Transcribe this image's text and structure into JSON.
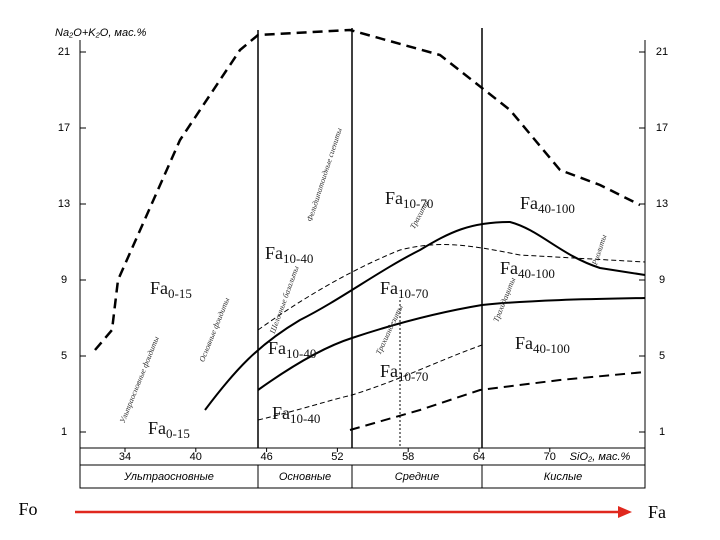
{
  "y_axis_label": "Na₂O+K₂O, мас.%",
  "x_axis_label": "SiO₂, мас.%",
  "yticks": [
    21,
    17,
    13,
    9,
    5,
    1
  ],
  "xticks": [
    34,
    40,
    46,
    52,
    58,
    64,
    70
  ],
  "rock_groups": [
    "Ультраосновные",
    "Основные",
    "Средние",
    "Кислые"
  ],
  "field_labels": [
    "Ультраосновные фоидиты",
    "Основные фоидиты",
    "Шелочные базальты",
    "Фельдшпатоидные сиениты",
    "Трахиандезиты",
    "Трахиты",
    "Трахидациты",
    "Риолиты"
  ],
  "fa_labels": [
    {
      "base": "Fa",
      "sub": "10-70"
    },
    {
      "base": "Fa",
      "sub": "40-100"
    },
    {
      "base": "Fa",
      "sub": "10-40"
    },
    {
      "base": "Fa",
      "sub": "0-15"
    },
    {
      "base": "Fa",
      "sub": "10-70"
    },
    {
      "base": "Fa",
      "sub": "40-100"
    },
    {
      "base": "Fa",
      "sub": "10-40"
    },
    {
      "base": "Fa",
      "sub": "40-100"
    },
    {
      "base": "Fa",
      "sub": "10-70"
    },
    {
      "base": "Fa",
      "sub": "10-40"
    },
    {
      "base": "Fa",
      "sub": "0-15"
    }
  ],
  "arrow": {
    "start": "Fo",
    "end": "Fa"
  }
}
